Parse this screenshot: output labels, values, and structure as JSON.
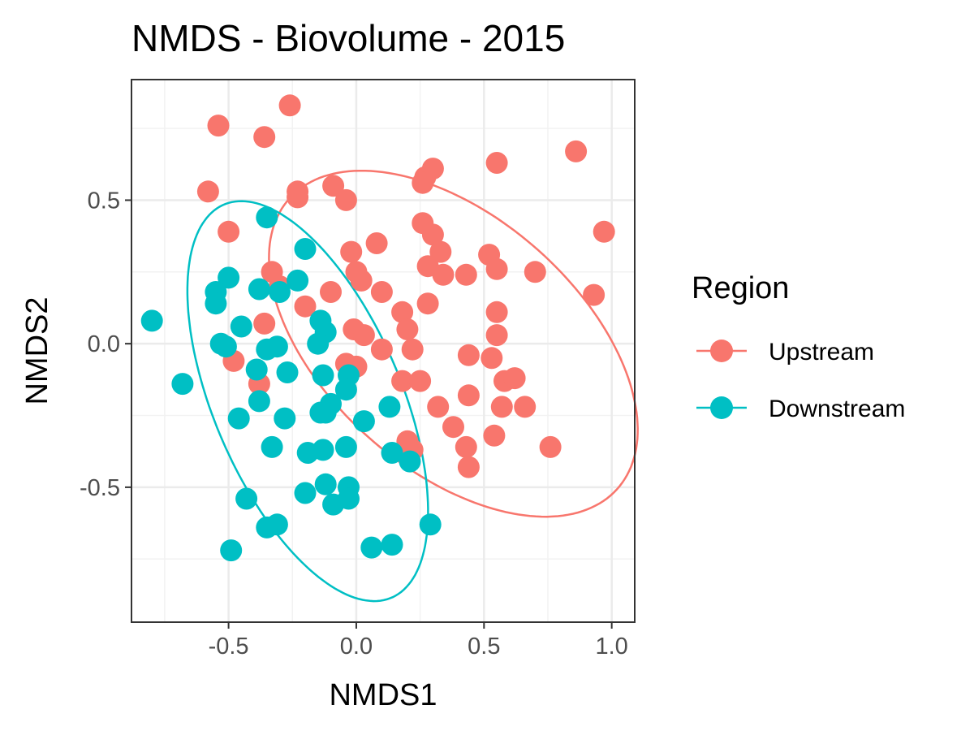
{
  "chart_data": {
    "type": "scatter",
    "title": "NMDS - Biovolume - 2015",
    "xlabel": "NMDS1",
    "ylabel": "NMDS2",
    "xlim": [
      -0.88,
      1.09
    ],
    "ylim": [
      -0.97,
      0.92
    ],
    "x_ticks": [
      -0.5,
      0.0,
      0.5,
      1.0
    ],
    "x_tick_labels": [
      "-0.5",
      "0.0",
      "0.5",
      "1.0"
    ],
    "y_ticks": [
      -0.5,
      0.0,
      0.5
    ],
    "y_tick_labels": [
      "-0.5",
      "0.0",
      "0.5"
    ],
    "grid": true,
    "legend": {
      "title": "Region",
      "placement": "right"
    },
    "series": [
      {
        "name": "Upstream",
        "color": "#F8766D",
        "points": [
          [
            -0.26,
            0.83
          ],
          [
            -0.54,
            0.76
          ],
          [
            -0.36,
            0.72
          ],
          [
            -0.58,
            0.53
          ],
          [
            -0.23,
            0.53
          ],
          [
            -0.23,
            0.51
          ],
          [
            -0.09,
            0.55
          ],
          [
            -0.04,
            0.5
          ],
          [
            -0.5,
            0.39
          ],
          [
            0.3,
            0.61
          ],
          [
            0.27,
            0.58
          ],
          [
            0.26,
            0.56
          ],
          [
            0.55,
            0.63
          ],
          [
            0.86,
            0.67
          ],
          [
            0.97,
            0.39
          ],
          [
            0.26,
            0.42
          ],
          [
            0.3,
            0.38
          ],
          [
            0.08,
            0.35
          ],
          [
            -0.02,
            0.32
          ],
          [
            0.33,
            0.32
          ],
          [
            0.52,
            0.31
          ],
          [
            0.55,
            0.26
          ],
          [
            0.7,
            0.25
          ],
          [
            0.28,
            0.27
          ],
          [
            0.34,
            0.24
          ],
          [
            0.43,
            0.24
          ],
          [
            -0.33,
            0.25
          ],
          [
            -0.3,
            0.2
          ],
          [
            0.0,
            0.25
          ],
          [
            0.02,
            0.22
          ],
          [
            -0.1,
            0.18
          ],
          [
            0.1,
            0.18
          ],
          [
            0.28,
            0.14
          ],
          [
            0.93,
            0.17
          ],
          [
            0.55,
            0.11
          ],
          [
            0.18,
            0.11
          ],
          [
            -0.2,
            0.13
          ],
          [
            -0.36,
            0.07
          ],
          [
            -0.01,
            0.05
          ],
          [
            0.03,
            0.03
          ],
          [
            0.2,
            0.05
          ],
          [
            0.55,
            0.03
          ],
          [
            0.1,
            -0.02
          ],
          [
            0.22,
            -0.02
          ],
          [
            0.44,
            -0.04
          ],
          [
            0.53,
            -0.05
          ],
          [
            -0.48,
            -0.06
          ],
          [
            -0.04,
            -0.07
          ],
          [
            0.0,
            -0.08
          ],
          [
            0.18,
            -0.13
          ],
          [
            0.25,
            -0.13
          ],
          [
            0.58,
            -0.13
          ],
          [
            0.62,
            -0.12
          ],
          [
            -0.38,
            -0.14
          ],
          [
            0.44,
            -0.18
          ],
          [
            0.32,
            -0.22
          ],
          [
            0.57,
            -0.22
          ],
          [
            0.66,
            -0.22
          ],
          [
            0.38,
            -0.29
          ],
          [
            0.54,
            -0.32
          ],
          [
            0.2,
            -0.34
          ],
          [
            0.22,
            -0.37
          ],
          [
            0.43,
            -0.36
          ],
          [
            0.44,
            -0.43
          ],
          [
            0.76,
            -0.36
          ]
        ]
      },
      {
        "name": "Downstream",
        "color": "#00BFC4",
        "points": [
          [
            -0.35,
            0.44
          ],
          [
            -0.2,
            0.33
          ],
          [
            -0.5,
            0.23
          ],
          [
            -0.55,
            0.18
          ],
          [
            -0.55,
            0.14
          ],
          [
            -0.38,
            0.19
          ],
          [
            -0.3,
            0.18
          ],
          [
            -0.23,
            0.22
          ],
          [
            -0.8,
            0.08
          ],
          [
            -0.45,
            0.06
          ],
          [
            -0.14,
            0.08
          ],
          [
            -0.12,
            0.04
          ],
          [
            -0.15,
            0.0
          ],
          [
            -0.53,
            0.0
          ],
          [
            -0.51,
            -0.01
          ],
          [
            -0.35,
            -0.02
          ],
          [
            -0.31,
            -0.01
          ],
          [
            -0.39,
            -0.09
          ],
          [
            -0.27,
            -0.1
          ],
          [
            -0.13,
            -0.11
          ],
          [
            -0.03,
            -0.11
          ],
          [
            -0.04,
            -0.16
          ],
          [
            -0.68,
            -0.14
          ],
          [
            -0.38,
            -0.2
          ],
          [
            -0.1,
            -0.21
          ],
          [
            -0.28,
            -0.26
          ],
          [
            -0.14,
            -0.24
          ],
          [
            -0.12,
            -0.24
          ],
          [
            0.13,
            -0.22
          ],
          [
            -0.46,
            -0.26
          ],
          [
            0.03,
            -0.27
          ],
          [
            -0.33,
            -0.36
          ],
          [
            -0.19,
            -0.38
          ],
          [
            -0.13,
            -0.37
          ],
          [
            -0.04,
            -0.36
          ],
          [
            0.14,
            -0.38
          ],
          [
            0.21,
            -0.41
          ],
          [
            -0.2,
            -0.52
          ],
          [
            -0.12,
            -0.49
          ],
          [
            -0.03,
            -0.5
          ],
          [
            -0.09,
            -0.56
          ],
          [
            -0.03,
            -0.54
          ],
          [
            -0.43,
            -0.54
          ],
          [
            -0.35,
            -0.64
          ],
          [
            -0.31,
            -0.63
          ],
          [
            0.06,
            -0.71
          ],
          [
            0.14,
            -0.7
          ],
          [
            0.29,
            -0.63
          ],
          [
            -0.49,
            -0.72
          ]
        ]
      }
    ],
    "ellipses": [
      {
        "series": "Upstream",
        "cx": 0.38,
        "cy": 0.0,
        "rx": 0.82,
        "ry": 0.46,
        "angle_deg": -35
      },
      {
        "series": "Downstream",
        "cx": -0.19,
        "cy": -0.2,
        "rx": 0.36,
        "ry": 0.76,
        "angle_deg": 27
      }
    ]
  }
}
